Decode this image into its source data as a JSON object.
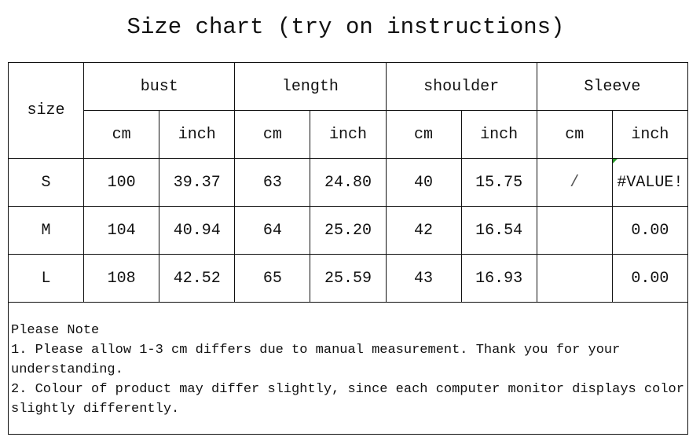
{
  "title": "Size chart (try on instructions)",
  "header": {
    "size": "size",
    "groups": [
      "bust",
      "length",
      "shoulder",
      "Sleeve"
    ],
    "units": [
      "cm",
      "inch",
      "cm",
      "inch",
      "cm",
      "inch",
      "cm",
      "inch"
    ]
  },
  "rows": [
    {
      "size": "S",
      "values": [
        "100",
        "39.37",
        "63",
        "24.80",
        "40",
        "15.75",
        "/",
        "#VALUE!"
      ]
    },
    {
      "size": "M",
      "values": [
        "104",
        "40.94",
        "64",
        "25.20",
        "42",
        "16.54",
        "",
        "0.00"
      ]
    },
    {
      "size": "L",
      "values": [
        "108",
        "42.52",
        "65",
        "25.59",
        "43",
        "16.93",
        "",
        "0.00"
      ]
    }
  ],
  "note": {
    "heading": "Please Note",
    "lines": [
      "1. Please allow 1-3 cm differs due to manual measurement. Thank you for your understanding.",
      "2. Colour of product may differ slightly, since each computer monitor displays color slightly differently."
    ]
  },
  "colors": {
    "error_indicator": "#2a9a2a"
  }
}
